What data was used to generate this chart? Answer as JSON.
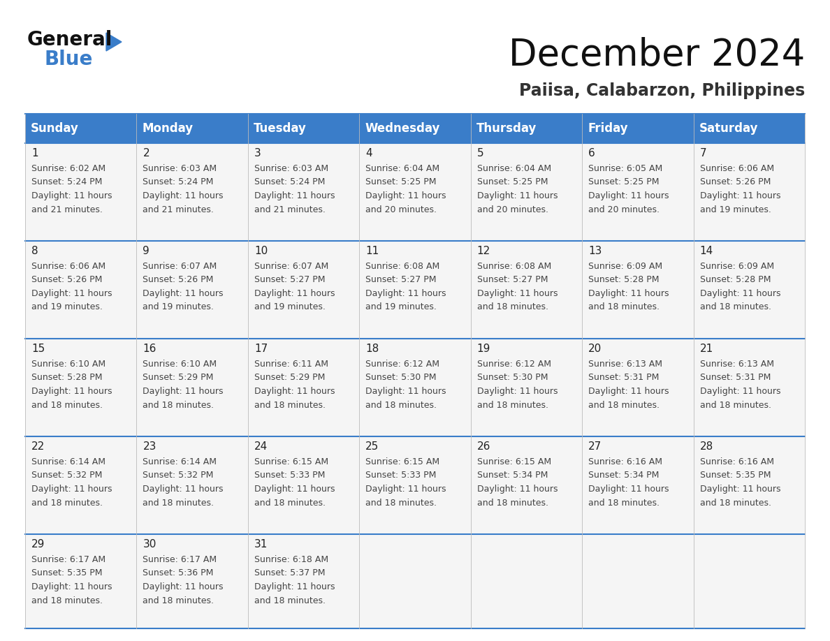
{
  "title": "December 2024",
  "subtitle": "Paiisa, Calabarzon, Philippines",
  "header_color": "#3A7DC9",
  "header_text_color": "#FFFFFF",
  "grid_line_color": "#3A7DC9",
  "day_headers": [
    "Sunday",
    "Monday",
    "Tuesday",
    "Wednesday",
    "Thursday",
    "Friday",
    "Saturday"
  ],
  "background_color": "#FFFFFF",
  "days": [
    {
      "day": 1,
      "col": 0,
      "row": 0,
      "sunrise": "6:02 AM",
      "sunset": "5:24 PM",
      "daylight_hours": 11,
      "daylight_minutes": 21
    },
    {
      "day": 2,
      "col": 1,
      "row": 0,
      "sunrise": "6:03 AM",
      "sunset": "5:24 PM",
      "daylight_hours": 11,
      "daylight_minutes": 21
    },
    {
      "day": 3,
      "col": 2,
      "row": 0,
      "sunrise": "6:03 AM",
      "sunset": "5:24 PM",
      "daylight_hours": 11,
      "daylight_minutes": 21
    },
    {
      "day": 4,
      "col": 3,
      "row": 0,
      "sunrise": "6:04 AM",
      "sunset": "5:25 PM",
      "daylight_hours": 11,
      "daylight_minutes": 20
    },
    {
      "day": 5,
      "col": 4,
      "row": 0,
      "sunrise": "6:04 AM",
      "sunset": "5:25 PM",
      "daylight_hours": 11,
      "daylight_minutes": 20
    },
    {
      "day": 6,
      "col": 5,
      "row": 0,
      "sunrise": "6:05 AM",
      "sunset": "5:25 PM",
      "daylight_hours": 11,
      "daylight_minutes": 20
    },
    {
      "day": 7,
      "col": 6,
      "row": 0,
      "sunrise": "6:06 AM",
      "sunset": "5:26 PM",
      "daylight_hours": 11,
      "daylight_minutes": 19
    },
    {
      "day": 8,
      "col": 0,
      "row": 1,
      "sunrise": "6:06 AM",
      "sunset": "5:26 PM",
      "daylight_hours": 11,
      "daylight_minutes": 19
    },
    {
      "day": 9,
      "col": 1,
      "row": 1,
      "sunrise": "6:07 AM",
      "sunset": "5:26 PM",
      "daylight_hours": 11,
      "daylight_minutes": 19
    },
    {
      "day": 10,
      "col": 2,
      "row": 1,
      "sunrise": "6:07 AM",
      "sunset": "5:27 PM",
      "daylight_hours": 11,
      "daylight_minutes": 19
    },
    {
      "day": 11,
      "col": 3,
      "row": 1,
      "sunrise": "6:08 AM",
      "sunset": "5:27 PM",
      "daylight_hours": 11,
      "daylight_minutes": 19
    },
    {
      "day": 12,
      "col": 4,
      "row": 1,
      "sunrise": "6:08 AM",
      "sunset": "5:27 PM",
      "daylight_hours": 11,
      "daylight_minutes": 18
    },
    {
      "day": 13,
      "col": 5,
      "row": 1,
      "sunrise": "6:09 AM",
      "sunset": "5:28 PM",
      "daylight_hours": 11,
      "daylight_minutes": 18
    },
    {
      "day": 14,
      "col": 6,
      "row": 1,
      "sunrise": "6:09 AM",
      "sunset": "5:28 PM",
      "daylight_hours": 11,
      "daylight_minutes": 18
    },
    {
      "day": 15,
      "col": 0,
      "row": 2,
      "sunrise": "6:10 AM",
      "sunset": "5:28 PM",
      "daylight_hours": 11,
      "daylight_minutes": 18
    },
    {
      "day": 16,
      "col": 1,
      "row": 2,
      "sunrise": "6:10 AM",
      "sunset": "5:29 PM",
      "daylight_hours": 11,
      "daylight_minutes": 18
    },
    {
      "day": 17,
      "col": 2,
      "row": 2,
      "sunrise": "6:11 AM",
      "sunset": "5:29 PM",
      "daylight_hours": 11,
      "daylight_minutes": 18
    },
    {
      "day": 18,
      "col": 3,
      "row": 2,
      "sunrise": "6:12 AM",
      "sunset": "5:30 PM",
      "daylight_hours": 11,
      "daylight_minutes": 18
    },
    {
      "day": 19,
      "col": 4,
      "row": 2,
      "sunrise": "6:12 AM",
      "sunset": "5:30 PM",
      "daylight_hours": 11,
      "daylight_minutes": 18
    },
    {
      "day": 20,
      "col": 5,
      "row": 2,
      "sunrise": "6:13 AM",
      "sunset": "5:31 PM",
      "daylight_hours": 11,
      "daylight_minutes": 18
    },
    {
      "day": 21,
      "col": 6,
      "row": 2,
      "sunrise": "6:13 AM",
      "sunset": "5:31 PM",
      "daylight_hours": 11,
      "daylight_minutes": 18
    },
    {
      "day": 22,
      "col": 0,
      "row": 3,
      "sunrise": "6:14 AM",
      "sunset": "5:32 PM",
      "daylight_hours": 11,
      "daylight_minutes": 18
    },
    {
      "day": 23,
      "col": 1,
      "row": 3,
      "sunrise": "6:14 AM",
      "sunset": "5:32 PM",
      "daylight_hours": 11,
      "daylight_minutes": 18
    },
    {
      "day": 24,
      "col": 2,
      "row": 3,
      "sunrise": "6:15 AM",
      "sunset": "5:33 PM",
      "daylight_hours": 11,
      "daylight_minutes": 18
    },
    {
      "day": 25,
      "col": 3,
      "row": 3,
      "sunrise": "6:15 AM",
      "sunset": "5:33 PM",
      "daylight_hours": 11,
      "daylight_minutes": 18
    },
    {
      "day": 26,
      "col": 4,
      "row": 3,
      "sunrise": "6:15 AM",
      "sunset": "5:34 PM",
      "daylight_hours": 11,
      "daylight_minutes": 18
    },
    {
      "day": 27,
      "col": 5,
      "row": 3,
      "sunrise": "6:16 AM",
      "sunset": "5:34 PM",
      "daylight_hours": 11,
      "daylight_minutes": 18
    },
    {
      "day": 28,
      "col": 6,
      "row": 3,
      "sunrise": "6:16 AM",
      "sunset": "5:35 PM",
      "daylight_hours": 11,
      "daylight_minutes": 18
    },
    {
      "day": 29,
      "col": 0,
      "row": 4,
      "sunrise": "6:17 AM",
      "sunset": "5:35 PM",
      "daylight_hours": 11,
      "daylight_minutes": 18
    },
    {
      "day": 30,
      "col": 1,
      "row": 4,
      "sunrise": "6:17 AM",
      "sunset": "5:36 PM",
      "daylight_hours": 11,
      "daylight_minutes": 18
    },
    {
      "day": 31,
      "col": 2,
      "row": 4,
      "sunrise": "6:18 AM",
      "sunset": "5:37 PM",
      "daylight_hours": 11,
      "daylight_minutes": 18
    }
  ],
  "logo_general_color": "#111111",
  "logo_blue_color": "#3A7DC9",
  "title_fontsize": 38,
  "subtitle_fontsize": 17,
  "header_fontsize": 12,
  "day_num_fontsize": 11,
  "cell_text_fontsize": 9
}
